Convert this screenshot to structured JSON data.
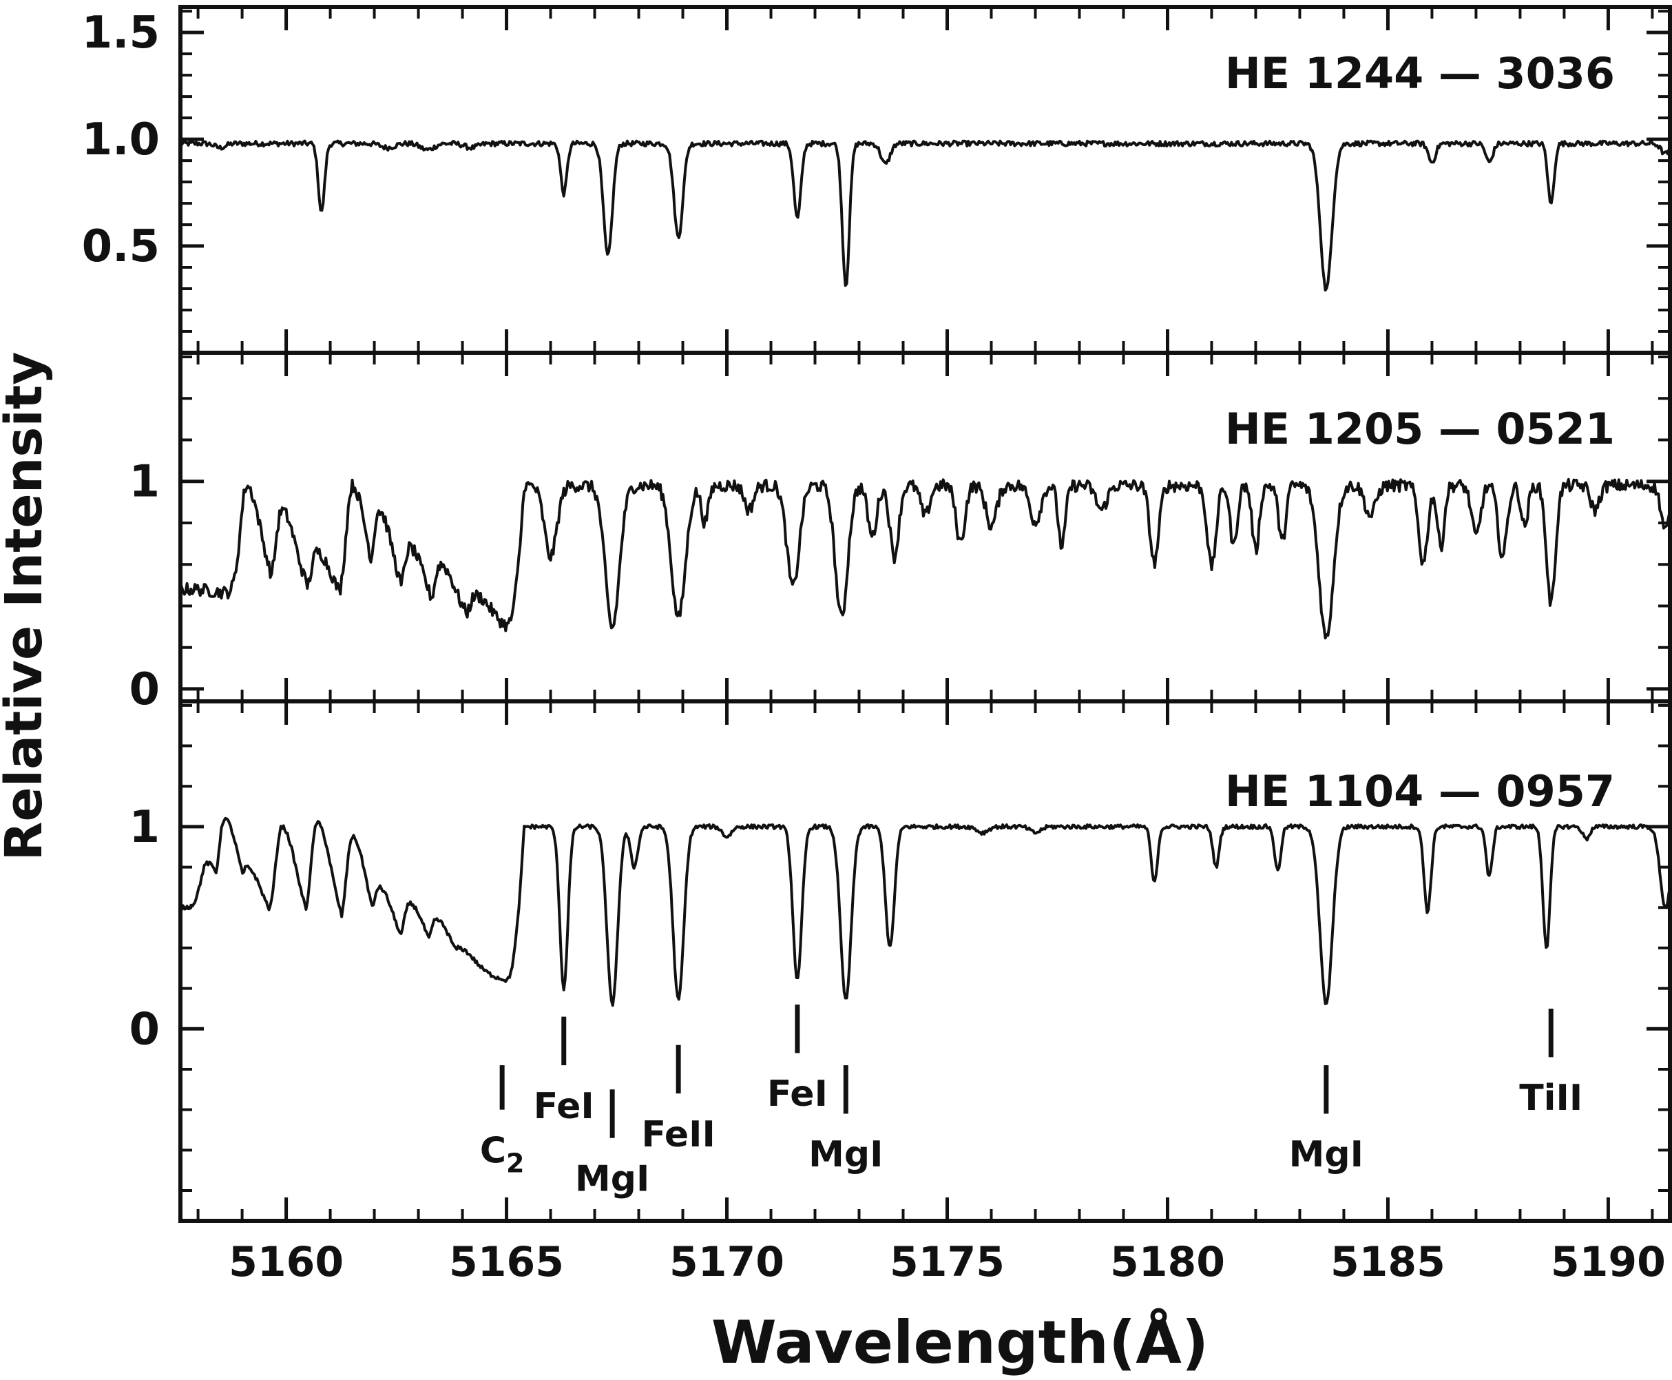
{
  "chart_data": {
    "type": "line",
    "xlabel": "Wavelength(Å)",
    "ylabel": "Relative  Intensity",
    "xlim": [
      5157.6,
      5191.4
    ],
    "xticks": [
      5160,
      5165,
      5170,
      5175,
      5180,
      5185,
      5190
    ],
    "x_minor_step": 1,
    "grid": false,
    "panels": [
      {
        "title": "HE  1244 — 3036",
        "ylim": [
          0,
          1.62
        ],
        "yticks": [
          0.5,
          1.0,
          1.5
        ],
        "ytick_labels": [
          "0.5",
          "1.0",
          "1.5"
        ],
        "y_minor_step": 0.1,
        "series": [
          {
            "continuum": 0.98,
            "noise": 0.012,
            "start_behavior": "flat",
            "lines": [
              [
                5158.5,
                0.02,
                0.12
              ],
              [
                5160.8,
                0.33,
                0.07
              ],
              [
                5162.3,
                0.02,
                0.15
              ],
              [
                5163.2,
                0.03,
                0.15
              ],
              [
                5164.2,
                0.02,
                0.15
              ],
              [
                5166.3,
                0.24,
                0.07
              ],
              [
                5167.3,
                0.54,
                0.1
              ],
              [
                5168.9,
                0.45,
                0.1
              ],
              [
                5171.6,
                0.36,
                0.08
              ],
              [
                5172.7,
                0.68,
                0.08
              ],
              [
                5173.6,
                0.1,
                0.1
              ],
              [
                5183.6,
                0.7,
                0.13
              ],
              [
                5186.0,
                0.09,
                0.08
              ],
              [
                5187.3,
                0.09,
                0.08
              ],
              [
                5188.7,
                0.29,
                0.07
              ],
              [
                5191.3,
                0.05,
                0.1
              ]
            ]
          }
        ]
      },
      {
        "title": "HE  1205 — 0521",
        "ylim": [
          -0.06,
          1.62
        ],
        "yticks": [
          0,
          1
        ],
        "ytick_labels": [
          "0",
          "1"
        ],
        "y_minor_step": 0.2,
        "series": [
          {
            "continuum": 0.98,
            "noise": 0.03,
            "start_behavior": "banded",
            "band_peak_positions": [
              5159.1,
              5159.9,
              5160.7,
              5161.5,
              5162.1,
              5162.8,
              5163.5,
              5164.3
            ],
            "band_peak_levels": [
              0.98,
              0.86,
              0.66,
              0.98,
              0.86,
              0.68,
              0.6,
              0.45
            ],
            "band_floor": [
              0.48,
              0.28
            ],
            "lines": [
              [
                5166.0,
                0.35,
                0.14
              ],
              [
                5167.4,
                0.7,
                0.16
              ],
              [
                5168.9,
                0.65,
                0.16
              ],
              [
                5169.5,
                0.18,
                0.08
              ],
              [
                5170.5,
                0.12,
                0.1
              ],
              [
                5171.5,
                0.5,
                0.14
              ],
              [
                5172.6,
                0.65,
                0.14
              ],
              [
                5173.3,
                0.25,
                0.1
              ],
              [
                5173.8,
                0.35,
                0.1
              ],
              [
                5174.5,
                0.15,
                0.1
              ],
              [
                5175.3,
                0.28,
                0.1
              ],
              [
                5176.0,
                0.2,
                0.12
              ],
              [
                5177.0,
                0.18,
                0.12
              ],
              [
                5177.6,
                0.3,
                0.08
              ],
              [
                5178.5,
                0.12,
                0.12
              ],
              [
                5179.7,
                0.38,
                0.1
              ],
              [
                5181.0,
                0.4,
                0.1
              ],
              [
                5181.5,
                0.3,
                0.08
              ],
              [
                5182.0,
                0.32,
                0.08
              ],
              [
                5182.6,
                0.28,
                0.08
              ],
              [
                5183.6,
                0.75,
                0.16
              ],
              [
                5184.6,
                0.15,
                0.12
              ],
              [
                5185.8,
                0.38,
                0.1
              ],
              [
                5186.2,
                0.3,
                0.08
              ],
              [
                5187.0,
                0.25,
                0.1
              ],
              [
                5187.6,
                0.35,
                0.1
              ],
              [
                5188.1,
                0.2,
                0.08
              ],
              [
                5188.7,
                0.58,
                0.1
              ],
              [
                5189.7,
                0.12,
                0.1
              ],
              [
                5191.3,
                0.22,
                0.1
              ]
            ]
          }
        ]
      },
      {
        "title": "HE  1104 — 0957",
        "ylim": [
          -0.95,
          1.62
        ],
        "yticks": [
          0,
          1
        ],
        "ytick_labels": [
          "0",
          "1"
        ],
        "y_minor_step": 0.2,
        "series": [
          {
            "continuum": 1.0,
            "noise": 0.01,
            "start_behavior": "banded",
            "band_peak_positions": [
              5158.2,
              5158.6,
              5159.1,
              5159.9,
              5160.7,
              5161.5,
              5162.1,
              5162.8,
              5163.4,
              5163.9
            ],
            "band_peak_levels": [
              0.82,
              1.04,
              0.8,
              1.0,
              1.02,
              0.95,
              0.7,
              0.62,
              0.54,
              0.4
            ],
            "band_floor": [
              0.6,
              0.22
            ],
            "lines": [
              [
                5166.3,
                0.8,
                0.09
              ],
              [
                5167.4,
                0.88,
                0.12
              ],
              [
                5167.9,
                0.2,
                0.08
              ],
              [
                5168.9,
                0.86,
                0.12
              ],
              [
                5170.0,
                0.05,
                0.1
              ],
              [
                5171.6,
                0.76,
                0.1
              ],
              [
                5172.7,
                0.86,
                0.12
              ],
              [
                5173.7,
                0.6,
                0.1
              ],
              [
                5175.8,
                0.03,
                0.12
              ],
              [
                5177.0,
                0.03,
                0.12
              ],
              [
                5179.7,
                0.28,
                0.07
              ],
              [
                5181.1,
                0.2,
                0.07
              ],
              [
                5182.5,
                0.22,
                0.07
              ],
              [
                5183.6,
                0.88,
                0.14
              ],
              [
                5185.9,
                0.42,
                0.08
              ],
              [
                5187.3,
                0.25,
                0.07
              ],
              [
                5188.6,
                0.6,
                0.08
              ],
              [
                5189.5,
                0.06,
                0.08
              ],
              [
                5191.3,
                0.4,
                0.12
              ]
            ]
          }
        ],
        "annotations": [
          {
            "label": "C",
            "label_sub": "2",
            "x": 5164.9,
            "mark": [
              -0.18,
              -0.4
            ],
            "label_y": -0.6
          },
          {
            "label": "FeI",
            "x": 5166.3,
            "mark": [
              0.06,
              -0.18
            ],
            "label_y": -0.38
          },
          {
            "label": "MgI",
            "x": 5167.4,
            "mark": [
              -0.3,
              -0.54
            ],
            "label_y": -0.74
          },
          {
            "label": "FeII",
            "x": 5168.9,
            "mark": [
              -0.08,
              -0.32
            ],
            "label_y": -0.52
          },
          {
            "label": "FeI",
            "x": 5171.6,
            "mark": [
              0.12,
              -0.12
            ],
            "label_y": -0.32
          },
          {
            "label": "MgI",
            "x": 5172.7,
            "mark": [
              -0.18,
              -0.42
            ],
            "label_y": -0.62
          },
          {
            "label": "MgI",
            "x": 5183.6,
            "mark": [
              -0.18,
              -0.42
            ],
            "label_y": -0.62
          },
          {
            "label": "TiII",
            "x": 5188.7,
            "mark": [
              0.1,
              -0.14
            ],
            "label_y": -0.34
          }
        ]
      }
    ]
  }
}
